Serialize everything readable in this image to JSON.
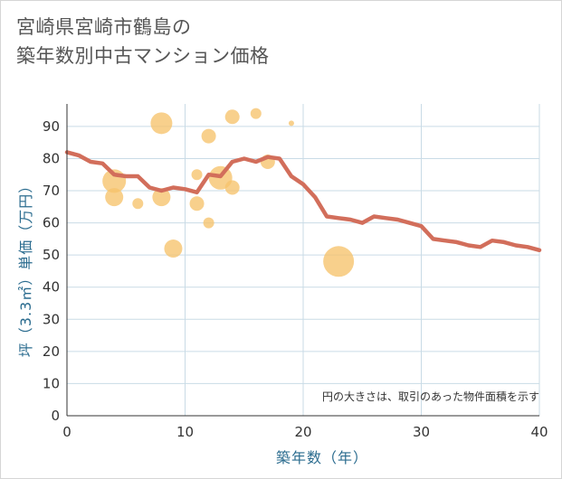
{
  "chart_data": {
    "type": "scatter+line",
    "title_lines": [
      "宮崎県宮崎市鶴島の",
      "築年数別中古マンション価格"
    ],
    "xlabel": "築年数（年）",
    "ylabel": "坪（3.3㎡）単価（万円）",
    "xlim": [
      0,
      40
    ],
    "ylim": [
      0,
      97
    ],
    "xticks": [
      0,
      10,
      20,
      30,
      40
    ],
    "yticks": [
      0,
      10,
      20,
      30,
      40,
      50,
      60,
      70,
      80,
      90
    ],
    "grid": true,
    "note": "円の大きさは、取引のあった物件面積を示す",
    "colors": {
      "bubble": "#f6c36b",
      "line": "#d26e5b",
      "grid": "#c9dbe6",
      "axis_text": "#2b6c8f"
    },
    "bubbles": [
      {
        "x": 4,
        "y": 73,
        "size": 13
      },
      {
        "x": 4,
        "y": 68,
        "size": 10
      },
      {
        "x": 6,
        "y": 66,
        "size": 6
      },
      {
        "x": 8,
        "y": 91,
        "size": 12
      },
      {
        "x": 8,
        "y": 68,
        "size": 10
      },
      {
        "x": 9,
        "y": 52,
        "size": 10
      },
      {
        "x": 11,
        "y": 66,
        "size": 8
      },
      {
        "x": 11,
        "y": 75,
        "size": 6
      },
      {
        "x": 12,
        "y": 87,
        "size": 8
      },
      {
        "x": 12,
        "y": 60,
        "size": 6
      },
      {
        "x": 13,
        "y": 74,
        "size": 13
      },
      {
        "x": 14,
        "y": 93,
        "size": 8
      },
      {
        "x": 14,
        "y": 71,
        "size": 8
      },
      {
        "x": 16,
        "y": 94,
        "size": 6
      },
      {
        "x": 17,
        "y": 79,
        "size": 8
      },
      {
        "x": 19,
        "y": 91,
        "size": 3
      },
      {
        "x": 23,
        "y": 48,
        "size": 17
      }
    ],
    "line": {
      "x": [
        0,
        1,
        2,
        3,
        4,
        5,
        6,
        7,
        8,
        9,
        10,
        11,
        12,
        13,
        14,
        15,
        16,
        17,
        18,
        19,
        20,
        21,
        22,
        23,
        24,
        25,
        26,
        27,
        28,
        29,
        30,
        31,
        32,
        33,
        34,
        35,
        36,
        37,
        38,
        39,
        40
      ],
      "y": [
        82,
        81,
        79,
        78.5,
        75,
        74.5,
        74.5,
        71,
        70,
        71,
        70.5,
        69.5,
        75,
        74.5,
        79,
        80,
        79,
        80.5,
        80,
        74.5,
        72,
        68,
        62,
        61.5,
        61,
        60,
        62,
        61.5,
        61,
        60,
        59,
        55,
        54.5,
        54,
        53,
        52.5,
        54.5,
        54,
        53,
        52.5,
        51.5
      ]
    }
  }
}
